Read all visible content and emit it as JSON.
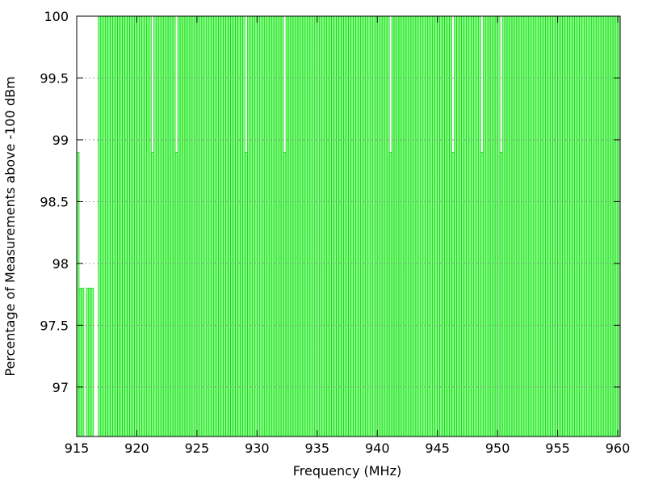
{
  "chart_data": {
    "type": "bar",
    "title": "",
    "xlabel": "Frequency (MHz)",
    "ylabel": "Percentage of Measurements above -100 dBm",
    "xlim": [
      915,
      960.2
    ],
    "ylim": [
      96.6,
      100
    ],
    "x_ticks": [
      "915",
      "920",
      "925",
      "930",
      "935",
      "940",
      "945",
      "950",
      "955",
      "960"
    ],
    "y_ticks": [
      "97",
      "97.5",
      "98",
      "98.5",
      "99",
      "99.5",
      "100"
    ],
    "grid": true,
    "bar_color": "#80ff80",
    "bar_edge_color": "#00c000",
    "bin_width_mhz": 0.2,
    "bin_start_mhz": 915.0,
    "bin_count": 226,
    "default_value": 100,
    "values_below_100": [
      {
        "x": 915.0,
        "value": 98.9
      },
      {
        "x": 915.2,
        "value": 97.8
      },
      {
        "x": 915.4,
        "value": 97.8
      },
      {
        "x": 915.6,
        "value": 96.6
      },
      {
        "x": 915.8,
        "value": 97.8
      },
      {
        "x": 916.0,
        "value": 97.8
      },
      {
        "x": 916.2,
        "value": 97.8
      },
      {
        "x": 921.2,
        "value": 98.9
      },
      {
        "x": 923.2,
        "value": 98.9
      },
      {
        "x": 929.0,
        "value": 98.9
      },
      {
        "x": 932.2,
        "value": 98.9
      },
      {
        "x": 941.0,
        "value": 98.9
      },
      {
        "x": 946.2,
        "value": 98.9
      },
      {
        "x": 948.6,
        "value": 98.9
      },
      {
        "x": 950.2,
        "value": 98.9
      }
    ],
    "gaps_mhz": [
      916.4,
      916.6
    ]
  }
}
